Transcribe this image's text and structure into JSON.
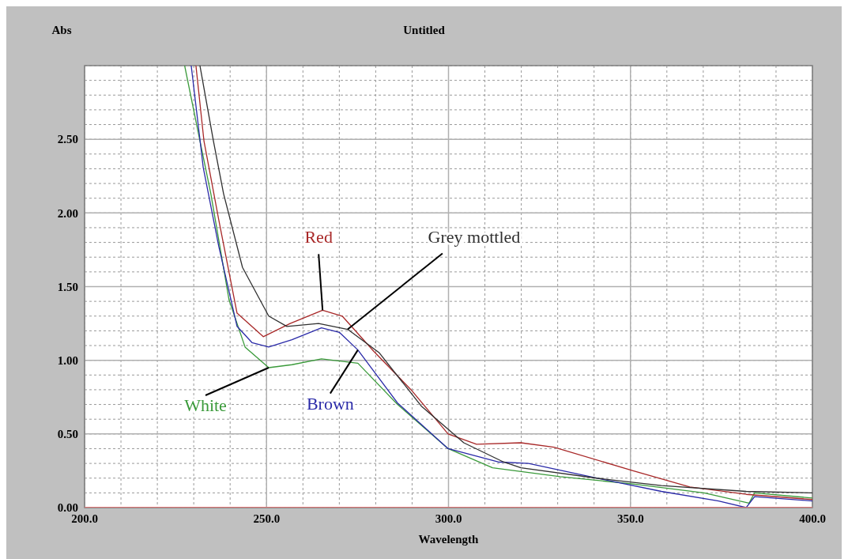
{
  "chart_data": {
    "type": "line",
    "title": "Untitled",
    "xlabel": "Wavelength",
    "ylabel": "Abs",
    "xlim": [
      200,
      400
    ],
    "ylim": [
      0,
      3
    ],
    "xticks": [
      {
        "value": 200,
        "label": "200.0"
      },
      {
        "value": 250,
        "label": "250.0"
      },
      {
        "value": 300,
        "label": "300.0"
      },
      {
        "value": 350,
        "label": "350.0"
      },
      {
        "value": 400,
        "label": "400.0"
      }
    ],
    "yticks": [
      {
        "value": 0,
        "label": "0.00"
      },
      {
        "value": 0.5,
        "label": "0.50"
      },
      {
        "value": 1,
        "label": "1.00"
      },
      {
        "value": 1.5,
        "label": "1.50"
      },
      {
        "value": 2,
        "label": "2.00"
      },
      {
        "value": 2.5,
        "label": "2.50"
      }
    ],
    "grid": true,
    "marker": "none",
    "line_style": "solid",
    "series": [
      {
        "name": "White",
        "color": "#3a9a3a",
        "x": [
          227.5,
          231.7,
          234.7,
          239.7,
          244.1,
          250.6,
          257,
          265.1,
          275.1,
          286,
          299.9,
          312.1,
          330.7,
          350.7,
          370.2,
          382.6,
          384.1,
          400
        ],
        "values": [
          3.0,
          2.49,
          2.13,
          1.41,
          1.09,
          0.95,
          0.97,
          1.01,
          0.98,
          0.7,
          0.4,
          0.27,
          0.21,
          0.16,
          0.1,
          0.03,
          0.1,
          0.065
        ]
      },
      {
        "name": "Brown",
        "color": "#2a2aa8",
        "x": [
          229.3,
          232.6,
          236.9,
          241.9,
          246,
          250.6,
          257,
          265.1,
          270,
          275.1,
          286,
          299.9,
          313.6,
          322,
          340.7,
          358.5,
          374.2,
          381.8,
          384.1,
          400
        ],
        "values": [
          3.0,
          2.31,
          1.77,
          1.23,
          1.12,
          1.09,
          1.14,
          1.22,
          1.19,
          1.07,
          0.71,
          0.4,
          0.31,
          0.3,
          0.2,
          0.11,
          0.045,
          0.0,
          0.075,
          0.045
        ]
      },
      {
        "name": "Red",
        "color": "#a82828",
        "x": [
          230.6,
          232.8,
          236.9,
          241.9,
          249.1,
          256.5,
          265.4,
          270.8,
          279.5,
          289.7,
          299.9,
          307.7,
          319.9,
          329,
          350.7,
          366.3,
          381.8,
          400
        ],
        "values": [
          3.0,
          2.49,
          1.95,
          1.32,
          1.16,
          1.25,
          1.34,
          1.3,
          1.06,
          0.8,
          0.5,
          0.43,
          0.44,
          0.41,
          0.25,
          0.14,
          0.09,
          0.055
        ]
      },
      {
        "name": "Grey mottled",
        "color": "#303030",
        "x": [
          231.7,
          235.4,
          238.2,
          243.4,
          250.6,
          255.6,
          264.3,
          272.3,
          281,
          292.5,
          304.2,
          315.1,
          319.9,
          340.7,
          358.5,
          381.8,
          400
        ],
        "values": [
          3.0,
          2.49,
          2.13,
          1.63,
          1.3,
          1.23,
          1.25,
          1.21,
          1.05,
          0.69,
          0.44,
          0.31,
          0.27,
          0.2,
          0.15,
          0.11,
          0.1
        ]
      },
      {
        "color": "#ff7070",
        "x": [
          200,
          400
        ],
        "values": [
          0,
          0
        ]
      }
    ]
  }
}
